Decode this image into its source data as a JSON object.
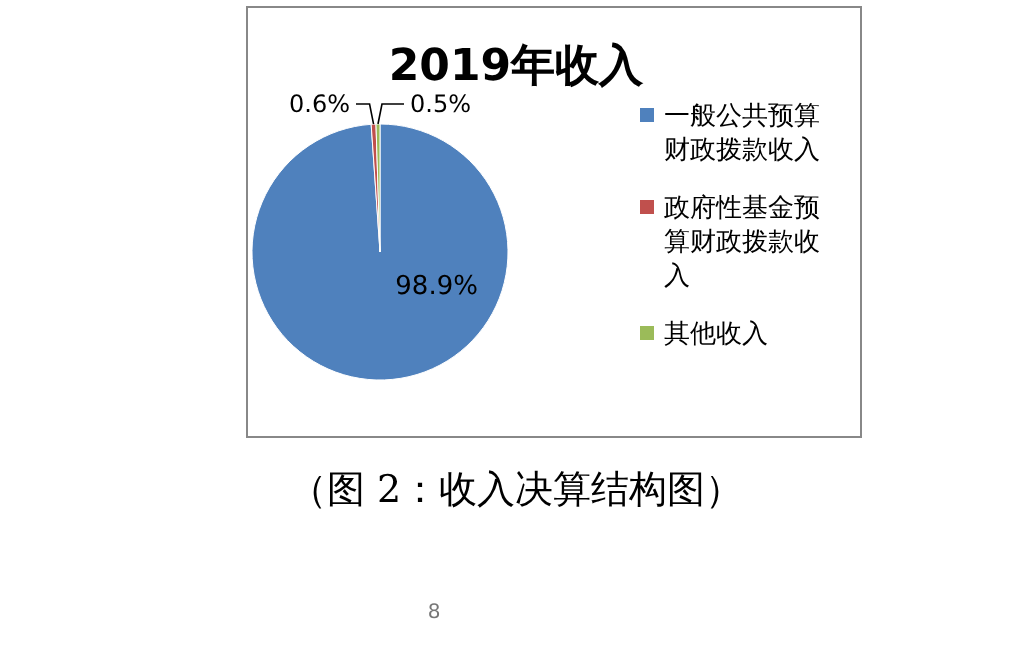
{
  "chart_data": {
    "type": "pie",
    "title": "2019年收入",
    "categories": [
      "一般公共预算财政拨款收入",
      "政府性基金预算财政拨款收入",
      "其他收入"
    ],
    "values": [
      98.9,
      0.6,
      0.5
    ],
    "colors": [
      "#4f81bd",
      "#c0504d",
      "#9bbb59"
    ],
    "value_labels": [
      "98.9%",
      "0.6%",
      "0.5%"
    ],
    "legend": "right",
    "annotations": [
      "（图 2：收入决算结构图）",
      "8"
    ]
  }
}
